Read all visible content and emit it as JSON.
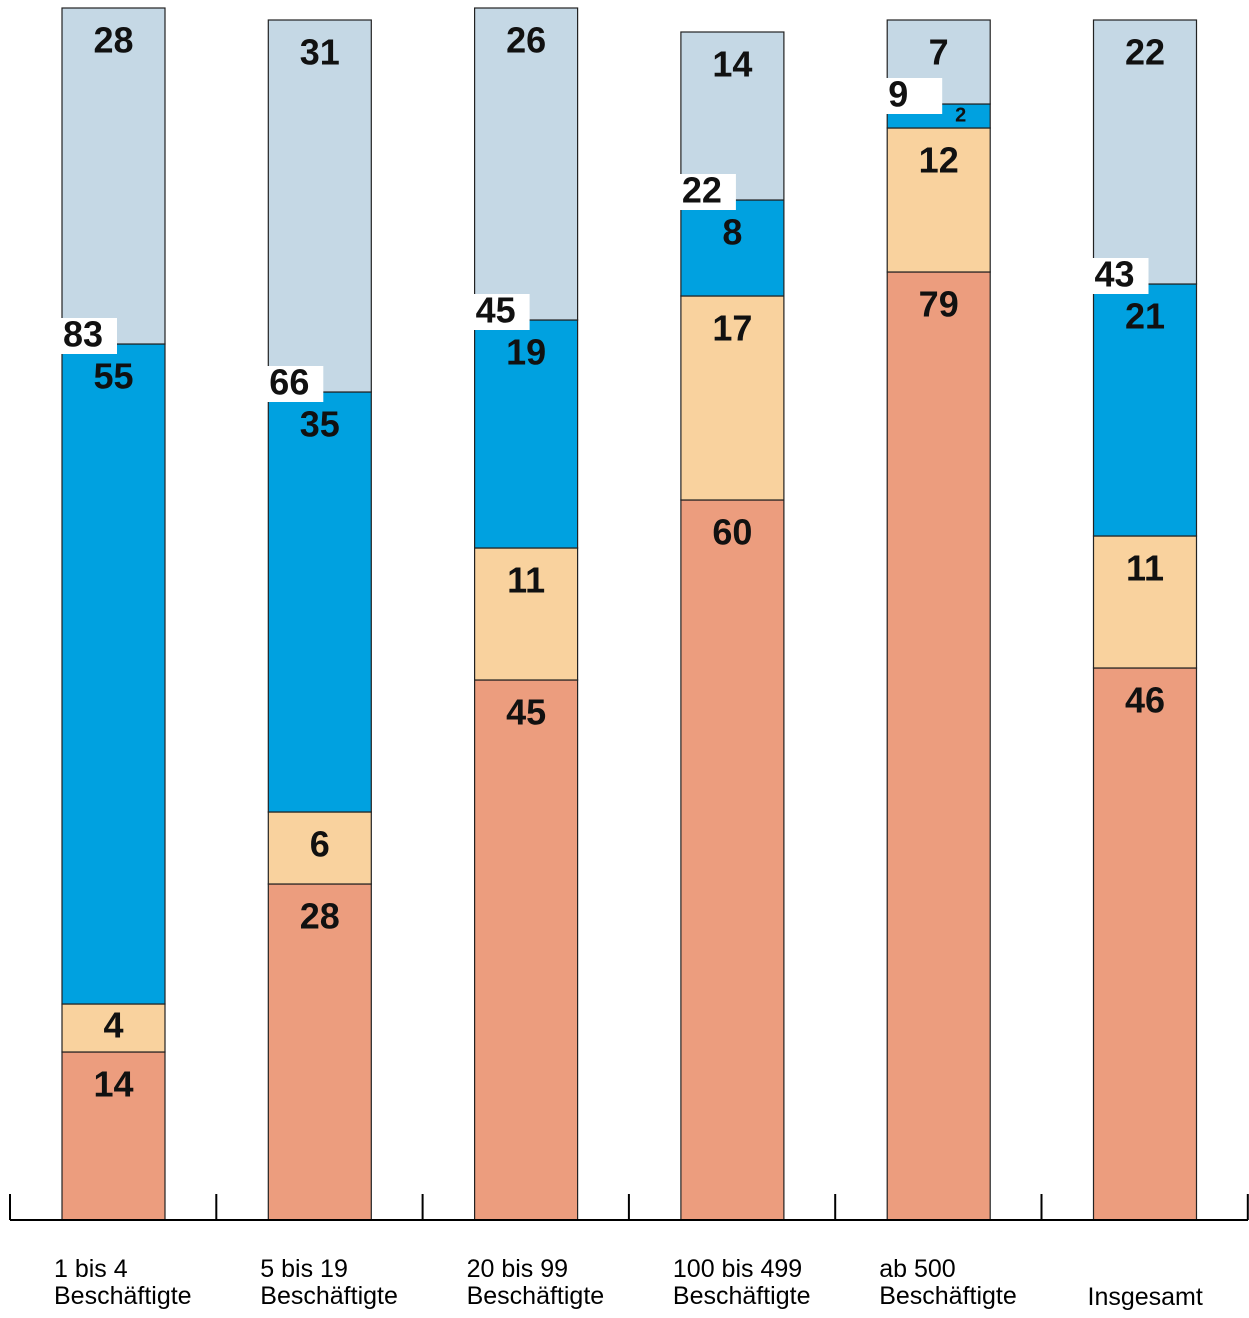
{
  "chart_data": {
    "type": "stacked_bar",
    "categories": [
      "1 bis 4\nBeschäftigte",
      "5 bis 19\nBeschäftigte",
      "20 bis 99\nBeschäftigte",
      "100 bis 499\nBeschäftigte",
      "ab 500\nBeschäftigte",
      "Insgesamt"
    ],
    "series": [
      {
        "color": "#ec9d7e",
        "values": [
          14,
          28,
          45,
          60,
          79,
          46
        ]
      },
      {
        "color": "#f9d29e",
        "values": [
          4,
          6,
          11,
          17,
          12,
          11
        ]
      },
      {
        "color": "#00a1e0",
        "values": [
          55,
          35,
          19,
          8,
          2,
          21
        ]
      },
      {
        "color": "#c5d8e5",
        "values": [
          28,
          31,
          26,
          14,
          7,
          22
        ]
      }
    ],
    "annotations": [
      83,
      66,
      45,
      22,
      9,
      43
    ],
    "ylim": [
      0,
      101
    ]
  }
}
